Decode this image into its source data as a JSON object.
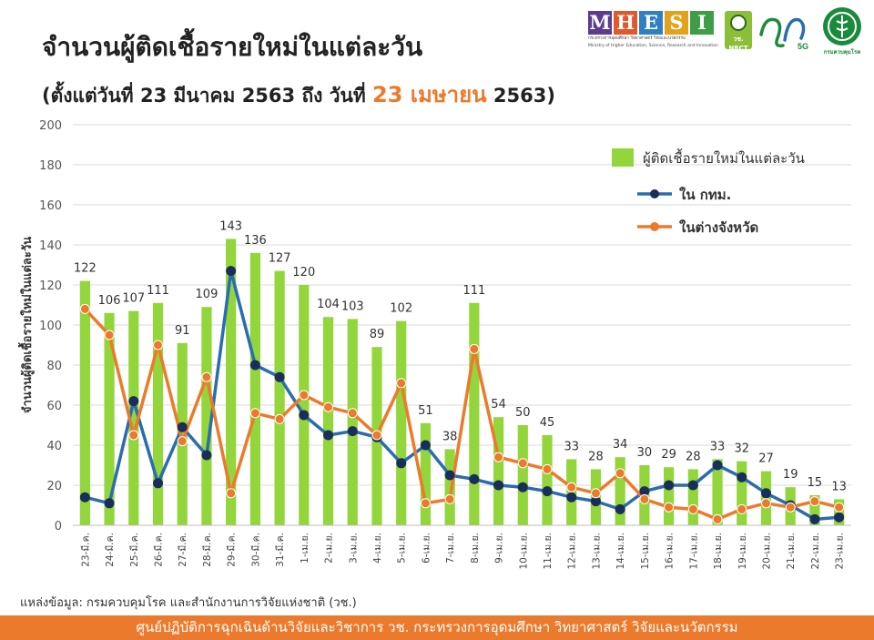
{
  "header": {
    "title": "จำนวนผู้ติดเชื้อรายใหม่ในแต่ละวัน",
    "subtitle_prefix": "(ตั้งแต่วันที่ 23 มีนาคม 2563 ถึง วันที่ ",
    "subtitle_highlight": "23 เมษายน",
    "subtitle_suffix": " 2563)"
  },
  "logos": {
    "mhesi_letters": [
      "M",
      "H",
      "E",
      "S",
      "I"
    ],
    "mhesi_colors": [
      "#5b3c8f",
      "#e0592a",
      "#2f7fc1",
      "#e2a21c",
      "#3e9e48"
    ],
    "mhesi_line1": "กระทรวงการอุดมศึกษา วิทยาศาสตร์ วิจัยและนวัตกรรม",
    "mhesi_line2": "Ministry of Higher Education, Science, Research and Innovation",
    "nrct_text": "วช. NRCT",
    "vc5g_text": "5G",
    "ddc_text": "กรมควบคุมโรค"
  },
  "chart_data": {
    "type": "bar",
    "ylabel": "จำนวนผู้ติดเชื้อรายใหม่ในแต่ละวัน",
    "ylim": [
      0,
      200
    ],
    "yticks": [
      0,
      20,
      40,
      60,
      80,
      100,
      120,
      140,
      160,
      180,
      200
    ],
    "grid": true,
    "legend_position": "top-right",
    "categories": [
      "23-มี.ค.",
      "24-มี.ค.",
      "25-มี.ค.",
      "26-มี.ค.",
      "27-มี.ค.",
      "28-มี.ค.",
      "29-มี.ค.",
      "30-มี.ค.",
      "31-มี.ค.",
      "1-เม.ย.",
      "2-เม.ย.",
      "3-เม.ย.",
      "4-เม.ย.",
      "5-เม.ย.",
      "6-เม.ย.",
      "7-เม.ย.",
      "8-เม.ย.",
      "9-เม.ย.",
      "10-เม.ย.",
      "11-เม.ย.",
      "12-เม.ย.",
      "13-เม.ย.",
      "14-เม.ย.",
      "15-เม.ย.",
      "16-เม.ย.",
      "17-เม.ย.",
      "18-เม.ย.",
      "19-เม.ย.",
      "20-เม.ย.",
      "21-เม.ย.",
      "22-เม.ย.",
      "23-เม.ย."
    ],
    "series": [
      {
        "name": "ผู้ติดเชื้อรายใหม่ในแต่ละวัน",
        "kind": "bar",
        "color": "#92d63c",
        "values": [
          122,
          106,
          107,
          111,
          91,
          109,
          143,
          136,
          127,
          120,
          104,
          103,
          89,
          102,
          51,
          38,
          111,
          54,
          50,
          45,
          33,
          28,
          34,
          30,
          29,
          28,
          33,
          32,
          27,
          19,
          15,
          13
        ]
      },
      {
        "name": "ใน กทม.",
        "kind": "line",
        "color": "#2b6cb0",
        "values": [
          14,
          11,
          62,
          21,
          49,
          35,
          127,
          80,
          74,
          55,
          45,
          47,
          44,
          31,
          40,
          25,
          23,
          20,
          19,
          17,
          14,
          12,
          8,
          17,
          20,
          20,
          30,
          24,
          16,
          10,
          3,
          4
        ]
      },
      {
        "name": "ในต่างจังหวัด",
        "kind": "line",
        "color": "#ec7a2c",
        "values": [
          108,
          95,
          45,
          90,
          42,
          74,
          16,
          56,
          53,
          65,
          59,
          56,
          45,
          71,
          11,
          13,
          88,
          34,
          31,
          28,
          19,
          16,
          26,
          13,
          9,
          8,
          3,
          8,
          11,
          9,
          12,
          9
        ]
      }
    ]
  },
  "source": "แหล่งข้อมูล: กรมควบคุมโรค และสำนักงานการวิจัยแห่งชาติ (วช.)",
  "footer": "ศูนย์ปฏิบัติการฉุกเฉินด้านวิจัยและวิชาการ   วช.   กระทรวงการอุดมศึกษา วิทยาศาสตร์ วิจัยและนวัตกรรม"
}
